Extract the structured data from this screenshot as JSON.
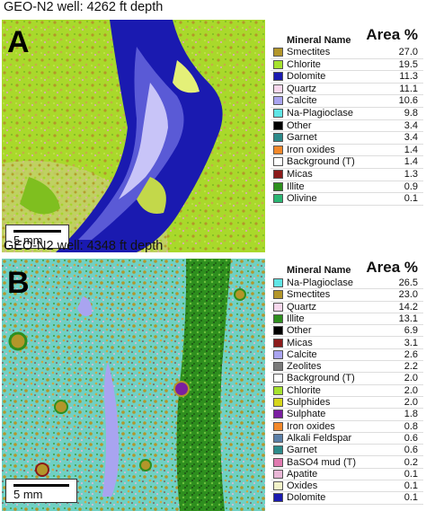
{
  "panelA": {
    "title": "GEO-N2 well: 4262 ft depth",
    "letter": "A",
    "scale": "5 mm",
    "header_name": "Mineral Name",
    "header_area": "Area %",
    "rows": [
      {
        "name": "Smectites",
        "value": "27.0",
        "color": "#b3962a"
      },
      {
        "name": "Chlorite",
        "value": "19.5",
        "color": "#a6e22e"
      },
      {
        "name": "Dolomite",
        "value": "11.3",
        "color": "#1a1ab0"
      },
      {
        "name": "Quartz",
        "value": "11.1",
        "color": "#f7d7ec"
      },
      {
        "name": "Calcite",
        "value": "10.6",
        "color": "#a9a4f0"
      },
      {
        "name": "Na-Plagioclase",
        "value": "9.8",
        "color": "#5fe6e6"
      },
      {
        "name": "Other",
        "value": "3.4",
        "color": "#000000"
      },
      {
        "name": "Garnet",
        "value": "3.4",
        "color": "#2c8a8a"
      },
      {
        "name": "Iron oxides",
        "value": "1.4",
        "color": "#f2882a"
      },
      {
        "name": "Background (T)",
        "value": "1.4",
        "color": "#ffffff"
      },
      {
        "name": "Micas",
        "value": "1.3",
        "color": "#8b1a1a"
      },
      {
        "name": "Illite",
        "value": "0.9",
        "color": "#2e8f1e"
      },
      {
        "name": "Olivine",
        "value": "0.1",
        "color": "#2bb673"
      }
    ]
  },
  "panelB": {
    "title": "GEO-N2 well: 4348 ft depth",
    "letter": "B",
    "scale": "5 mm",
    "header_name": "Mineral Name",
    "header_area": "Area %",
    "rows": [
      {
        "name": "Na-Plagioclase",
        "value": "26.5",
        "color": "#5fe6e6"
      },
      {
        "name": "Smectites",
        "value": "23.0",
        "color": "#b3962a"
      },
      {
        "name": "Quartz",
        "value": "14.2",
        "color": "#f7d7ec"
      },
      {
        "name": "Illite",
        "value": "13.1",
        "color": "#2e8f1e"
      },
      {
        "name": "Other",
        "value": "6.9",
        "color": "#000000"
      },
      {
        "name": "Micas",
        "value": "3.1",
        "color": "#8b1a1a"
      },
      {
        "name": "Calcite",
        "value": "2.6",
        "color": "#a9a4f0"
      },
      {
        "name": "Zeolites",
        "value": "2.2",
        "color": "#7a7a7a"
      },
      {
        "name": "Background (T)",
        "value": "2.0",
        "color": "#ffffff"
      },
      {
        "name": "Chlorite",
        "value": "2.0",
        "color": "#a6e22e"
      },
      {
        "name": "Sulphides",
        "value": "2.0",
        "color": "#d6d61a"
      },
      {
        "name": "Sulphate",
        "value": "1.8",
        "color": "#7a1fa0"
      },
      {
        "name": "Iron oxides",
        "value": "0.8",
        "color": "#f2882a"
      },
      {
        "name": "Alkali Feldspar",
        "value": "0.6",
        "color": "#5a7fa8"
      },
      {
        "name": "Garnet",
        "value": "0.6",
        "color": "#2c8a8a"
      },
      {
        "name": "BaSO4 mud (T)",
        "value": "0.2",
        "color": "#e07ab0"
      },
      {
        "name": "Apatite",
        "value": "0.1",
        "color": "#e8b6d6"
      },
      {
        "name": "Oxides",
        "value": "0.1",
        "color": "#f2f2c8"
      },
      {
        "name": "Dolomite",
        "value": "0.1",
        "color": "#1a1ab0"
      }
    ]
  }
}
